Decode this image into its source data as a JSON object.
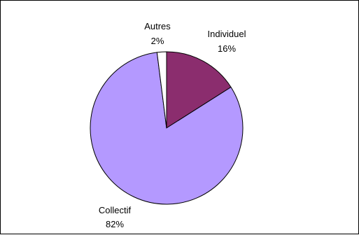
{
  "chart_data": {
    "type": "pie",
    "title": "",
    "slices": [
      {
        "label": "Individuel",
        "percent_label": "16%",
        "value": 16,
        "color": "#8b2d6e"
      },
      {
        "label": "Collectif",
        "percent_label": "82%",
        "value": 82,
        "color": "#b499ff"
      },
      {
        "label": "Autres",
        "percent_label": "2%",
        "value": 2,
        "color": "#ffffff"
      }
    ],
    "start": "12 o'clock",
    "direction": "clockwise",
    "legend": "none",
    "stroke_color": "#000000"
  }
}
